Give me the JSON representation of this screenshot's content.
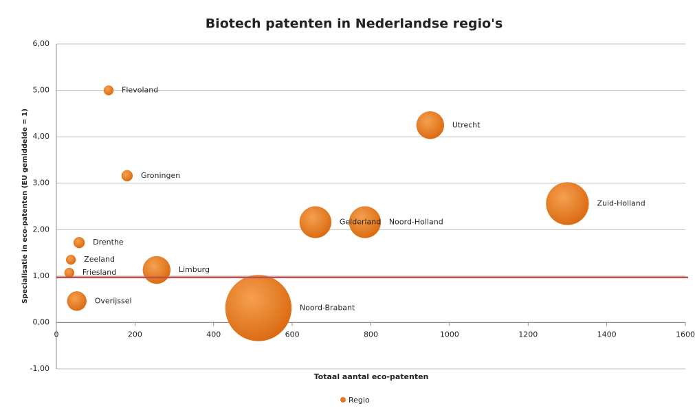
{
  "chart_data": {
    "type": "bubble",
    "title": "Biotech patenten in Nederlandse regio's",
    "x_label": "Totaal aantal eco-patenten",
    "y_label": "Specialisatie in eco-patenten (EU gemiddelde = 1)",
    "series": [
      {
        "name": "Regio",
        "color": "#e8781e",
        "labels": [
          "Flevoland",
          "Utrecht",
          "Groningen",
          "Zuid-Holland",
          "Gelderland",
          "Noord-Holland",
          "Drenthe",
          "Zeeland",
          "Friesland",
          "Limburg",
          "Overijssel",
          "Noord-Brabant"
        ],
        "x": [
          133,
          951,
          180,
          1300,
          659,
          785,
          58,
          37,
          33,
          255,
          52,
          514
        ],
        "values": [
          5.0,
          4.25,
          3.16,
          2.56,
          2.16,
          2.16,
          1.72,
          1.35,
          1.07,
          1.13,
          0.46,
          0.31
        ],
        "sizes": [
          49,
          400,
          64,
          961,
          529,
          529,
          64,
          49,
          49,
          400,
          196,
          2304
        ]
      }
    ],
    "reference_line": {
      "value": 0.97,
      "color": "#c0504d"
    },
    "xlim": [
      0,
      1600
    ],
    "xticks": [
      0,
      200,
      400,
      600,
      800,
      1000,
      1200,
      1400,
      1600
    ],
    "ylim": [
      -1,
      6
    ],
    "yticks": [
      {
        "value": -1,
        "label": "-1,00"
      },
      {
        "value": 0,
        "label": "0,00"
      },
      {
        "value": 1,
        "label": "1,00"
      },
      {
        "value": 2,
        "label": "2,00"
      },
      {
        "value": 3,
        "label": "3,00"
      },
      {
        "value": 4,
        "label": "4,00"
      },
      {
        "value": 5,
        "label": "5,00"
      },
      {
        "value": 6,
        "label": "6,00"
      }
    ],
    "grid": true,
    "legend": "bottom"
  }
}
